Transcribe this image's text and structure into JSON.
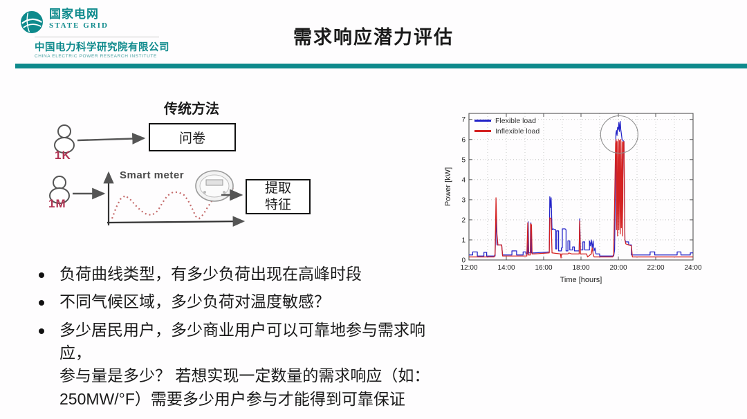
{
  "header": {
    "brand_cn": "国家电网",
    "brand_en": "STATE GRID",
    "company_cn": "中国电力科学研究院有限公司",
    "company_en": "CHINA ELECTRIC POWER RESEARCH INSTITUTE",
    "brand_color": "#0e8a8c",
    "title": "需求响应潜力评估"
  },
  "diagram": {
    "method_label": "传统方法",
    "survey_box_label": "问卷",
    "group1_label": "1K",
    "group2_label": "1M",
    "smart_meter_label": "Smart meter",
    "extract_box_label": "提取\n特征",
    "label_color": "#b03352"
  },
  "bullets": [
    "负荷曲线类型，有多少负荷出现在高峰时段",
    "不同气候区域，多少负荷对温度敏感？",
    "多少居民用户，多少商业用户可以可靠地参与需求响应，\n参与量是多少？ 若想实现一定数量的需求响应（如：\n250MW/°F）需要多少用户参与才能得到可靠保证"
  ],
  "chart_data": {
    "type": "line",
    "title": "",
    "xlabel": "Time [hours]",
    "ylabel": "Power [kW]",
    "xlim": [
      12,
      24
    ],
    "ylim": [
      0,
      7.3
    ],
    "xticks": [
      12,
      14,
      16,
      18,
      20,
      22,
      24
    ],
    "xtick_labels": [
      "12:00",
      "14:00",
      "16:00",
      "18:00",
      "20:00",
      "22:00",
      "24:00"
    ],
    "yticks": [
      0,
      1,
      2,
      3,
      4,
      5,
      6,
      7
    ],
    "grid": true,
    "legend_position": "top-left",
    "annotation": {
      "type": "circle",
      "x_hour": 20.05,
      "y_kw": 6.25,
      "radius_px": 27,
      "color": "#8f8f8f"
    },
    "series": [
      {
        "name": "Flexible load",
        "color": "#2323c8",
        "points": [
          [
            12.0,
            0.25
          ],
          [
            12.2,
            0.25
          ],
          [
            12.2,
            0.4
          ],
          [
            12.45,
            0.4
          ],
          [
            12.45,
            0.2
          ],
          [
            12.8,
            0.2
          ],
          [
            12.8,
            0.38
          ],
          [
            12.95,
            0.38
          ],
          [
            12.95,
            0.2
          ],
          [
            13.4,
            0.2
          ],
          [
            13.45,
            2.2
          ],
          [
            13.5,
            0.75
          ],
          [
            13.75,
            0.75
          ],
          [
            13.8,
            0.25
          ],
          [
            14.3,
            0.25
          ],
          [
            14.3,
            0.45
          ],
          [
            14.55,
            0.45
          ],
          [
            14.55,
            0.25
          ],
          [
            14.9,
            0.25
          ],
          [
            14.9,
            0.4
          ],
          [
            15.05,
            0.4
          ],
          [
            15.05,
            0.3
          ],
          [
            15.15,
            0.3
          ],
          [
            15.17,
            1.9
          ],
          [
            15.2,
            0.35
          ],
          [
            15.3,
            0.35
          ],
          [
            15.32,
            1.85
          ],
          [
            15.35,
            0.35
          ],
          [
            15.5,
            0.35
          ],
          [
            16.3,
            0.4
          ],
          [
            16.33,
            3.15
          ],
          [
            16.38,
            2.6
          ],
          [
            16.4,
            3.1
          ],
          [
            16.45,
            1.5
          ],
          [
            16.5,
            1.55
          ],
          [
            16.65,
            1.5
          ],
          [
            16.65,
            0.55
          ],
          [
            16.7,
            0.55
          ],
          [
            16.7,
            1.45
          ],
          [
            16.8,
            1.45
          ],
          [
            16.8,
            0.45
          ],
          [
            16.95,
            0.45
          ],
          [
            16.95,
            0.6
          ],
          [
            17.0,
            0.6
          ],
          [
            17.0,
            1.55
          ],
          [
            17.15,
            1.55
          ],
          [
            17.2,
            1.5
          ],
          [
            17.2,
            0.45
          ],
          [
            17.3,
            0.45
          ],
          [
            17.3,
            0.95
          ],
          [
            17.4,
            0.95
          ],
          [
            17.4,
            0.5
          ],
          [
            17.55,
            0.5
          ],
          [
            17.55,
            0.65
          ],
          [
            17.65,
            0.65
          ],
          [
            17.65,
            0.45
          ],
          [
            17.9,
            0.45
          ],
          [
            17.93,
            2.05
          ],
          [
            17.97,
            0.5
          ],
          [
            18.1,
            0.5
          ],
          [
            18.1,
            0.9
          ],
          [
            18.2,
            0.9
          ],
          [
            18.2,
            0.5
          ],
          [
            18.45,
            0.5
          ],
          [
            18.45,
            0.95
          ],
          [
            18.5,
            0.7
          ],
          [
            18.55,
            1.0
          ],
          [
            18.6,
            0.6
          ],
          [
            18.65,
            0.95
          ],
          [
            18.7,
            0.45
          ],
          [
            18.75,
            0.6
          ],
          [
            18.8,
            0.3
          ],
          [
            19.0,
            0.3
          ],
          [
            19.0,
            0.2
          ],
          [
            19.75,
            0.2
          ],
          [
            19.8,
            0.5
          ],
          [
            19.85,
            5.0
          ],
          [
            19.87,
            6.3
          ],
          [
            19.9,
            6.45
          ],
          [
            19.93,
            6.2
          ],
          [
            19.96,
            6.6
          ],
          [
            20.0,
            6.5
          ],
          [
            20.03,
            6.85
          ],
          [
            20.06,
            6.4
          ],
          [
            20.1,
            6.9
          ],
          [
            20.13,
            6.5
          ],
          [
            20.16,
            6.3
          ],
          [
            20.2,
            6.0
          ],
          [
            20.3,
            5.9
          ],
          [
            20.35,
            1.0
          ],
          [
            20.4,
            0.9
          ],
          [
            20.55,
            0.9
          ],
          [
            20.55,
            0.75
          ],
          [
            20.7,
            0.75
          ],
          [
            20.7,
            0.25
          ],
          [
            21.7,
            0.25
          ],
          [
            21.7,
            0.4
          ],
          [
            21.95,
            0.4
          ],
          [
            21.95,
            0.25
          ],
          [
            23.15,
            0.25
          ],
          [
            23.15,
            0.4
          ],
          [
            23.35,
            0.4
          ],
          [
            23.35,
            0.25
          ],
          [
            23.85,
            0.25
          ],
          [
            23.85,
            0.35
          ],
          [
            24.0,
            0.35
          ]
        ]
      },
      {
        "name": "Inflexible load",
        "color": "#d42222",
        "points": [
          [
            12.0,
            0.15
          ],
          [
            13.35,
            0.15
          ],
          [
            13.4,
            0.3
          ],
          [
            13.45,
            3.1
          ],
          [
            13.5,
            1.3
          ],
          [
            13.55,
            0.75
          ],
          [
            13.75,
            0.75
          ],
          [
            13.8,
            0.2
          ],
          [
            15.1,
            0.2
          ],
          [
            15.15,
            1.85
          ],
          [
            15.18,
            0.25
          ],
          [
            15.28,
            0.25
          ],
          [
            15.3,
            1.8
          ],
          [
            15.35,
            1.75
          ],
          [
            15.38,
            0.3
          ],
          [
            15.5,
            0.3
          ],
          [
            16.3,
            0.35
          ],
          [
            16.33,
            2.1
          ],
          [
            16.4,
            2.05
          ],
          [
            16.45,
            0.35
          ],
          [
            16.9,
            0.3
          ],
          [
            16.93,
            0.1
          ],
          [
            16.96,
            0.3
          ],
          [
            17.3,
            0.3
          ],
          [
            17.35,
            0.35
          ],
          [
            17.5,
            0.3
          ],
          [
            17.9,
            0.3
          ],
          [
            17.93,
            1.95
          ],
          [
            17.97,
            0.3
          ],
          [
            18.3,
            0.3
          ],
          [
            18.35,
            0.15
          ],
          [
            18.55,
            0.3
          ],
          [
            18.6,
            0.6
          ],
          [
            18.65,
            0.3
          ],
          [
            18.7,
            0.15
          ],
          [
            19.7,
            0.15
          ],
          [
            19.75,
            0.3
          ],
          [
            19.85,
            5.8
          ],
          [
            19.88,
            6.0
          ],
          [
            19.9,
            1.5
          ],
          [
            19.93,
            5.9
          ],
          [
            19.96,
            1.2
          ],
          [
            20.0,
            6.0
          ],
          [
            20.03,
            1.5
          ],
          [
            20.06,
            5.95
          ],
          [
            20.1,
            1.3
          ],
          [
            20.13,
            6.0
          ],
          [
            20.16,
            1.6
          ],
          [
            20.2,
            5.9
          ],
          [
            20.23,
            1.2
          ],
          [
            20.26,
            5.85
          ],
          [
            20.3,
            5.9
          ],
          [
            20.35,
            1.0
          ],
          [
            20.4,
            0.8
          ],
          [
            20.55,
            0.75
          ],
          [
            20.7,
            0.7
          ],
          [
            20.75,
            0.15
          ],
          [
            24.0,
            0.15
          ]
        ]
      }
    ]
  }
}
